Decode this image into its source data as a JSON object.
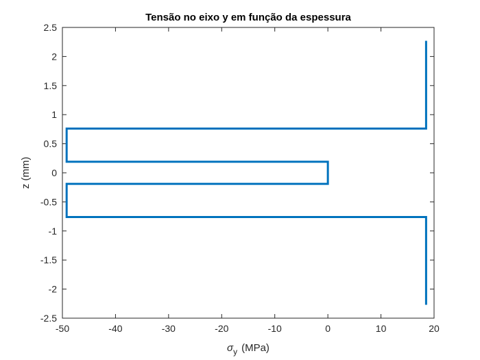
{
  "chart_data": {
    "type": "line",
    "title": "Tensão no eixo y em função da espessura",
    "xlabel_symbol": "σ",
    "xlabel_sub": "y",
    "xlabel_unit": "(MPa)",
    "ylabel": "z (mm)",
    "xlim": [
      -50,
      20
    ],
    "ylim": [
      -2.5,
      2.5
    ],
    "xticks": [
      -50,
      -40,
      -30,
      -20,
      -10,
      0,
      10,
      20
    ],
    "yticks": [
      -2.5,
      -2,
      -1.5,
      -1,
      -0.5,
      0,
      0.5,
      1,
      1.5,
      2,
      2.5
    ],
    "xtick_labels": [
      "-50",
      "-40",
      "-30",
      "-20",
      "-10",
      "0",
      "10",
      "20"
    ],
    "ytick_labels": [
      "-2.5",
      "-2",
      "-1.5",
      "-1",
      "-0.5",
      "0",
      "0.5",
      "1",
      "1.5",
      "2",
      "2.5"
    ],
    "grid": false,
    "series": [
      {
        "color": "#0072BD",
        "x": [
          18.5,
          18.5,
          18.5,
          -49.2,
          -49.2,
          -49.2,
          0,
          0,
          0,
          -49.2,
          -49.2,
          -49.2,
          18.5,
          18.5,
          18.5
        ],
        "y": [
          2.27,
          0.76,
          0.76,
          0.76,
          0.19,
          0.19,
          0.19,
          -0.19,
          -0.19,
          -0.19,
          -0.76,
          -0.76,
          -0.76,
          -2.27,
          -2.27
        ]
      }
    ]
  }
}
